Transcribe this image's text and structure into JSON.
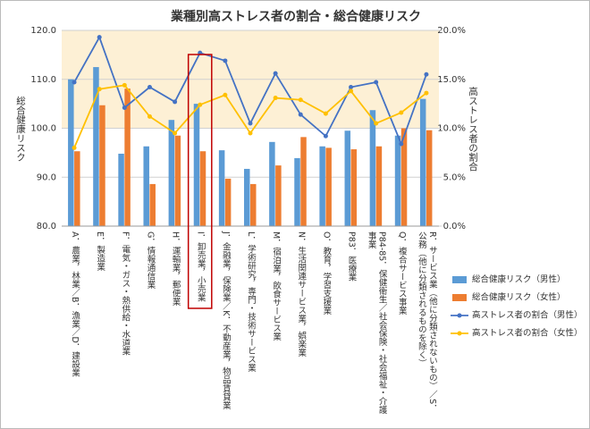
{
  "chart_data": {
    "type": "bar-line",
    "title": "業種別高ストレス者の割合・総合健康リスク",
    "y_label": "総合健康リスク",
    "y2_label": "高ストレス者の割合",
    "categories": [
      "A．農業，林業／B．漁業／D．建設業",
      "E．製造業",
      "F．電気・ガス・熱供給・水道業",
      "G．情報通信業",
      "H．運輸業，郵便業",
      "I．卸売業，小売業",
      "J．金融業，保険業／K．不動産業，物品賃貸業",
      "L．学術研究，専門・技術サービス業",
      "M．宿泊業，飲食サービス業",
      "N．生活関連サービス業，娯楽業",
      "O．教育，学習支援業",
      "P83．医療業",
      "P84-85．保健衛生／社会保険・社会福祉・介護事業",
      "Q．複合サービス事業",
      "R．サービス業（他に分類されないもの）／S．公務（他に分類されるものを除く）"
    ],
    "series": [
      {
        "name": "総合健康リスク（男性）",
        "kind": "bar",
        "color": "#5b9bd5",
        "values": [
          110,
          112.5,
          94.8,
          96.3,
          101.7,
          105,
          95.5,
          91.7,
          97.2,
          93.9,
          96.3,
          99.5,
          103.7,
          98.5,
          106
        ]
      },
      {
        "name": "総合健康リスク（女性）",
        "kind": "bar",
        "color": "#ed7d31",
        "values": [
          95.3,
          104.7,
          108.1,
          88.6,
          98.5,
          95.3,
          89.7,
          88.6,
          92.4,
          98.2,
          96,
          95.7,
          96.3,
          100,
          99.6
        ]
      },
      {
        "name": "高ストレス者の割合（男性）",
        "kind": "line",
        "axis": "y2",
        "color": "#4472c4",
        "values": [
          14.7,
          19.3,
          12.1,
          14.2,
          12.7,
          17.7,
          16.9,
          10.5,
          15.6,
          11.4,
          9.2,
          14.2,
          14.7,
          8.4,
          15.5
        ]
      },
      {
        "name": "高ストレス者の割合（女性）",
        "kind": "line",
        "axis": "y2",
        "color": "#ffc000",
        "values": [
          8.0,
          14.0,
          14.4,
          11.2,
          9.5,
          12.4,
          13.4,
          9.5,
          13.1,
          12.9,
          11.5,
          13.8,
          10.5,
          11.6,
          13.6
        ]
      }
    ],
    "ylim": [
      80,
      120
    ],
    "yticks": [
      {
        "value": 80,
        "label": "80.0"
      },
      {
        "value": 90,
        "label": "90.0"
      },
      {
        "value": 100,
        "label": "100.0"
      },
      {
        "value": 110,
        "label": "110.0"
      },
      {
        "value": 120,
        "label": "120.0"
      }
    ],
    "y2lim": [
      0,
      20
    ],
    "y2ticks": [
      {
        "value": 0,
        "label": "0.0%"
      },
      {
        "value": 5,
        "label": "5.0%"
      },
      {
        "value": 10,
        "label": "10.0%"
      },
      {
        "value": 15,
        "label": "15.0%"
      },
      {
        "value": 20,
        "label": "20.0%"
      }
    ],
    "grid": true,
    "highlight_band": {
      "from": 100,
      "to": 120,
      "color": "#fdf0d5"
    },
    "highlight_category": 5,
    "legend": "right"
  }
}
